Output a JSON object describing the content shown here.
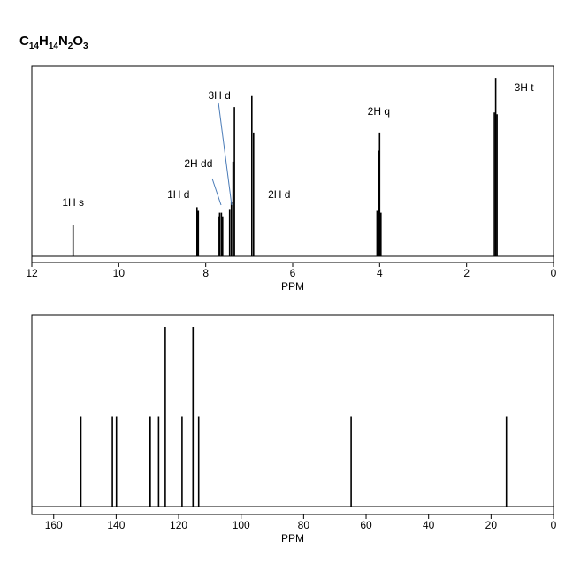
{
  "formula": {
    "C": "C",
    "c_count": "14",
    "H": "H",
    "h_count": "14",
    "N": "N",
    "n_count": "2",
    "O": "O",
    "o_count": "3"
  },
  "chart_data": [
    {
      "type": "line",
      "title": "",
      "xlabel": "PPM",
      "ylabel": "",
      "xlim": [
        12,
        0
      ],
      "x_reversed": true,
      "grid": false,
      "xticks": [
        "12",
        "10",
        "8",
        "6",
        "4",
        "2",
        "0"
      ],
      "peaks": [
        {
          "ppm": 11.05,
          "intensity": 0.17
        },
        {
          "ppm": 8.2,
          "intensity": 0.27
        },
        {
          "ppm": 8.17,
          "intensity": 0.25
        },
        {
          "ppm": 7.71,
          "intensity": 0.22
        },
        {
          "ppm": 7.68,
          "intensity": 0.24
        },
        {
          "ppm": 7.64,
          "intensity": 0.24
        },
        {
          "ppm": 7.61,
          "intensity": 0.22
        },
        {
          "ppm": 7.45,
          "intensity": 0.26
        },
        {
          "ppm": 7.41,
          "intensity": 0.3
        },
        {
          "ppm": 7.37,
          "intensity": 0.52
        },
        {
          "ppm": 7.34,
          "intensity": 0.82
        },
        {
          "ppm": 6.94,
          "intensity": 0.88
        },
        {
          "ppm": 6.9,
          "intensity": 0.68
        },
        {
          "ppm": 4.06,
          "intensity": 0.25
        },
        {
          "ppm": 4.03,
          "intensity": 0.58
        },
        {
          "ppm": 4.0,
          "intensity": 0.68
        },
        {
          "ppm": 3.97,
          "intensity": 0.24
        },
        {
          "ppm": 1.36,
          "intensity": 0.79
        },
        {
          "ppm": 1.33,
          "intensity": 0.98
        },
        {
          "ppm": 1.3,
          "intensity": 0.78
        }
      ],
      "annotations": [
        {
          "text": "1H s",
          "ppm": 11.05
        },
        {
          "text": "1H d",
          "ppm": 8.18
        },
        {
          "text": "2H dd",
          "ppm": 7.66
        },
        {
          "text": "3H d",
          "ppm": 7.4
        },
        {
          "text": "2H d",
          "ppm": 6.92
        },
        {
          "text": "2H q",
          "ppm": 4.02
        },
        {
          "text": "3H t",
          "ppm": 1.33
        }
      ]
    },
    {
      "type": "bar",
      "title": "",
      "xlabel": "PPM",
      "ylabel": "",
      "xlim": [
        167,
        0
      ],
      "x_reversed": true,
      "grid": false,
      "xticks": [
        "160",
        "140",
        "120",
        "100",
        "80",
        "60",
        "40",
        "20",
        "0"
      ],
      "xtick_values": [
        160,
        140,
        120,
        100,
        80,
        60,
        40,
        20,
        0
      ],
      "peaks": [
        {
          "ppm": 151.3,
          "intensity": 0.5
        },
        {
          "ppm": 141.2,
          "intensity": 0.5
        },
        {
          "ppm": 139.9,
          "intensity": 0.5
        },
        {
          "ppm": 129.4,
          "intensity": 0.5
        },
        {
          "ppm": 129.1,
          "intensity": 0.5
        },
        {
          "ppm": 126.4,
          "intensity": 0.5
        },
        {
          "ppm": 124.3,
          "intensity": 1.0
        },
        {
          "ppm": 118.9,
          "intensity": 0.5
        },
        {
          "ppm": 115.4,
          "intensity": 1.0
        },
        {
          "ppm": 113.6,
          "intensity": 0.5
        },
        {
          "ppm": 64.8,
          "intensity": 0.5
        },
        {
          "ppm": 15.1,
          "intensity": 0.5
        }
      ]
    }
  ]
}
